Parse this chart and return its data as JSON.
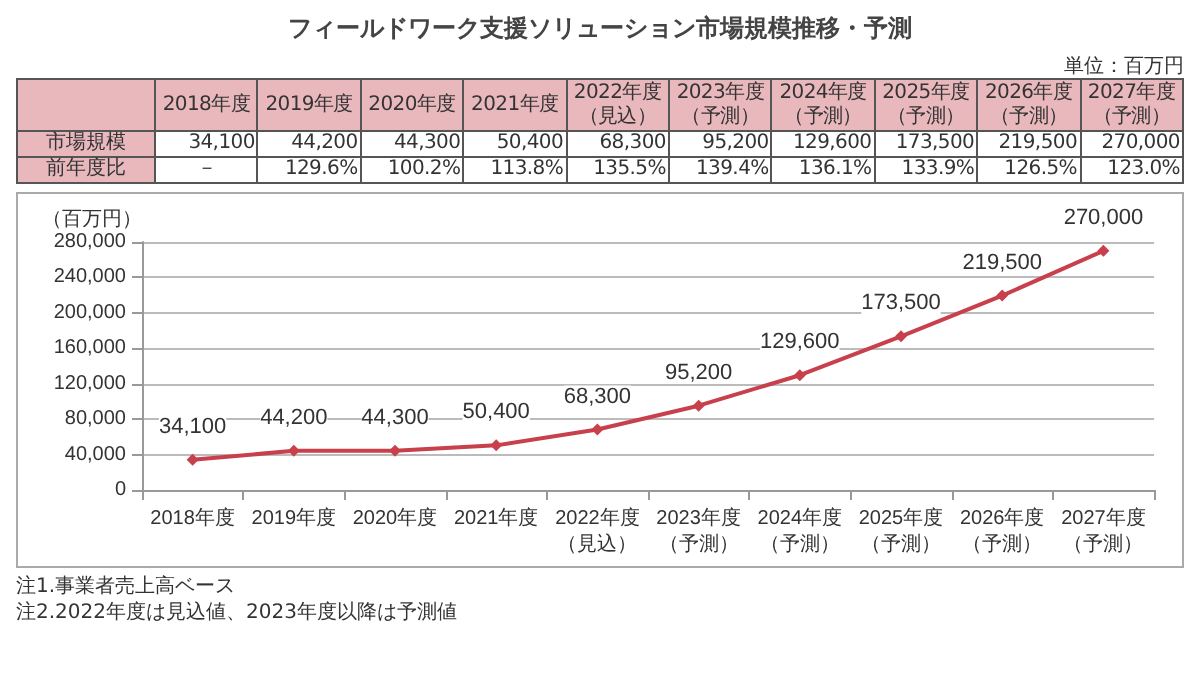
{
  "chart_data": {
    "type": "line",
    "title": "フィールドワーク支援ソリューション市場規模推移・予測",
    "ylabel": "（百万円）",
    "categories": [
      "2018年度",
      "2019年度",
      "2020年度",
      "2021年度",
      "2022年度（見込）",
      "2023年度（予測）",
      "2024年度（予測）",
      "2025年度（予測）",
      "2026年度（予測）",
      "2027年度（予測）"
    ],
    "series": [
      {
        "color": "#c8404c",
        "values": [
          34100,
          44200,
          44300,
          50400,
          68300,
          95200,
          129600,
          173500,
          219500,
          270000
        ],
        "value_labels": [
          "34,100",
          "44,200",
          "44,300",
          "50,400",
          "68,300",
          "95,200",
          "129,600",
          "173,500",
          "219,500",
          "270,000"
        ]
      }
    ],
    "ylim": [
      0,
      280000
    ],
    "yticks": [
      0,
      {
        "value": 40000,
        "label": "40,000"
      },
      {
        "value": 80000,
        "label": "80,000"
      },
      {
        "value": 120000,
        "label": "120,000"
      },
      {
        "value": 160000,
        "label": "160,000"
      },
      {
        "value": 200000,
        "label": "200,000"
      },
      {
        "value": 240000,
        "label": "240,000"
      },
      {
        "value": 280000,
        "label": "280,000"
      }
    ],
    "grid": "y",
    "marker": "diamond",
    "line_style": "solid",
    "annotations": [
      "単位：百万円",
      "市場規模",
      "前年度比",
      "－",
      "129.6%",
      "100.2%",
      "113.8%",
      "135.5%",
      "139.4%",
      "136.1%",
      "133.9%",
      "126.5%",
      "123.0%",
      "注1.事業者売上高ベース",
      "注2.2022年度は見込値、2023年度以降は予測値"
    ]
  }
}
